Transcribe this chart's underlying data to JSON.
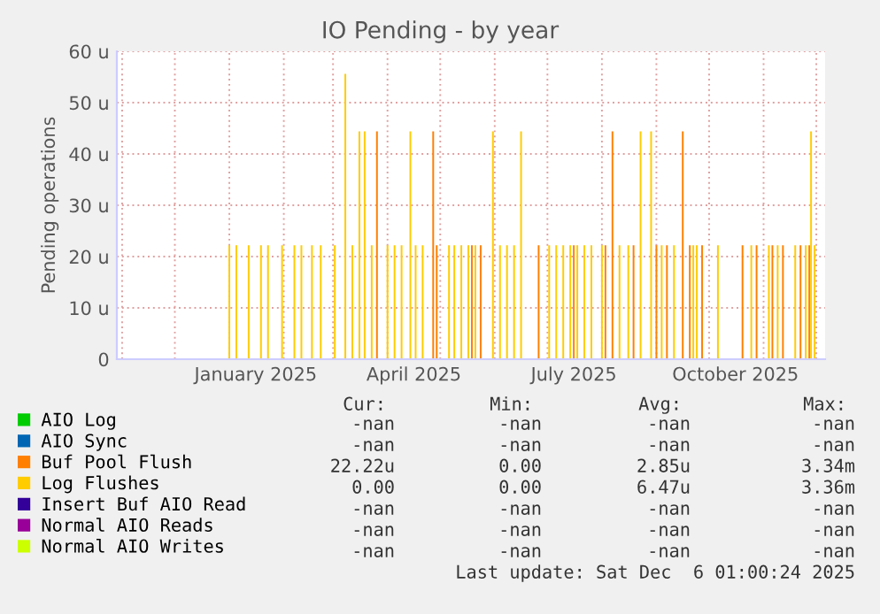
{
  "chart_data": {
    "type": "bar",
    "title": "IO Pending - by year",
    "ylabel": "Pending operations",
    "xlim": [
      "2024-10-29",
      "2025-12-06"
    ],
    "xticks": [
      {
        "value": "2024-11-01",
        "label": null
      },
      {
        "value": "2024-12-01",
        "label": null
      },
      {
        "value": "2025-01-01",
        "label": null
      },
      {
        "value": "2025-01-16",
        "label": "January 2025"
      },
      {
        "value": "2025-02-01",
        "label": null
      },
      {
        "value": "2025-03-01",
        "label": null
      },
      {
        "value": "2025-04-01",
        "label": null
      },
      {
        "value": "2025-04-16",
        "label": "April 2025"
      },
      {
        "value": "2025-05-01",
        "label": null
      },
      {
        "value": "2025-06-01",
        "label": null
      },
      {
        "value": "2025-07-01",
        "label": null
      },
      {
        "value": "2025-07-16",
        "label": "July 2025"
      },
      {
        "value": "2025-08-01",
        "label": null
      },
      {
        "value": "2025-09-01",
        "label": null
      },
      {
        "value": "2025-10-01",
        "label": null
      },
      {
        "value": "2025-10-16",
        "label": "October 2025"
      },
      {
        "value": "2025-11-01",
        "label": null
      },
      {
        "value": "2025-12-01",
        "label": null
      }
    ],
    "ylim": [
      0,
      60
    ],
    "yticks": [
      0,
      {
        "value": 10,
        "label": "10 u"
      },
      {
        "value": 20,
        "label": "20 u"
      },
      {
        "value": 30,
        "label": "30 u"
      },
      {
        "value": 40,
        "label": "40 u"
      },
      {
        "value": 50,
        "label": "50 u"
      },
      {
        "value": 60,
        "label": "60 u"
      }
    ],
    "grid": true,
    "legend": "bottom",
    "series": [
      {
        "name": "AIO Log",
        "color": "#00cc00"
      },
      {
        "name": "AIO Sync",
        "color": "#0066b3"
      },
      {
        "name": "Buf Pool Flush",
        "color": "#ff8000",
        "x": [
          "2025-03-26",
          "2025-04-27",
          "2025-04-29",
          "2025-05-19",
          "2025-05-24",
          "2025-06-26",
          "2025-07-16",
          "2025-08-03",
          "2025-08-07",
          "2025-08-19",
          "2025-09-01",
          "2025-09-07",
          "2025-09-16",
          "2025-09-20",
          "2025-09-27",
          "2025-10-20",
          "2025-10-28",
          "2025-11-06",
          "2025-11-12",
          "2025-11-22",
          "2025-11-27"
        ],
        "values": [
          44.4,
          44.4,
          22.2,
          22.2,
          22.2,
          22.2,
          22.2,
          22.2,
          44.4,
          22.2,
          22.2,
          22.2,
          44.4,
          22.2,
          22.2,
          22.2,
          22.2,
          22.2,
          22.2,
          22.2,
          22.2
        ]
      },
      {
        "name": "Log Flushes",
        "color": "#ffcc00",
        "x": [
          "2025-01-01",
          "2025-01-05",
          "2025-01-12",
          "2025-01-19",
          "2025-01-23",
          "2025-01-31",
          "2025-02-07",
          "2025-02-11",
          "2025-02-17",
          "2025-02-22",
          "2025-03-02",
          "2025-03-08",
          "2025-03-12",
          "2025-03-16",
          "2025-03-19",
          "2025-03-23",
          "2025-04-01",
          "2025-04-05",
          "2025-04-09",
          "2025-04-14",
          "2025-04-17",
          "2025-04-21",
          "2025-05-06",
          "2025-05-09",
          "2025-05-13",
          "2025-05-17",
          "2025-05-21",
          "2025-05-31",
          "2025-06-04",
          "2025-06-08",
          "2025-06-12",
          "2025-06-16",
          "2025-07-02",
          "2025-07-06",
          "2025-07-10",
          "2025-07-14",
          "2025-07-18",
          "2025-07-22",
          "2025-07-26",
          "2025-08-01",
          "2025-08-11",
          "2025-08-16",
          "2025-08-23",
          "2025-08-29",
          "2025-09-04",
          "2025-09-11",
          "2025-09-22",
          "2025-09-24",
          "2025-10-06",
          "2025-10-25",
          "2025-11-04",
          "2025-11-09",
          "2025-11-19",
          "2025-11-25",
          "2025-11-28",
          "2025-11-30"
        ],
        "values": [
          22.2,
          22.2,
          22.2,
          22.2,
          22.2,
          22.2,
          22.2,
          22.2,
          22.2,
          22.2,
          22.2,
          55.6,
          22.2,
          44.4,
          44.4,
          22.2,
          22.2,
          22.2,
          22.2,
          44.4,
          22.2,
          22.2,
          22.2,
          22.2,
          22.2,
          22.2,
          22.2,
          44.4,
          22.2,
          22.2,
          22.2,
          44.4,
          22.2,
          22.2,
          22.2,
          22.2,
          22.2,
          22.2,
          22.2,
          22.2,
          22.2,
          22.2,
          44.4,
          44.4,
          22.2,
          22.2,
          22.2,
          22.2,
          22.2,
          22.2,
          22.2,
          22.2,
          22.2,
          22.2,
          44.4,
          22.2
        ]
      },
      {
        "name": "Insert Buf AIO Read",
        "color": "#330099"
      },
      {
        "name": "Normal AIO Reads",
        "color": "#990099"
      },
      {
        "name": "Normal AIO Writes",
        "color": "#ccff00"
      }
    ],
    "annotations": [
      "Cur:",
      "Min:",
      "Avg:",
      "Max:",
      "-nan",
      "-nan",
      "-nan",
      "-nan",
      "-nan",
      "-nan",
      "-nan",
      "-nan",
      "22.22u",
      "0.00",
      "2.85u",
      "3.34m",
      "0.00",
      "0.00",
      "6.47u",
      "3.36m",
      "-nan",
      "-nan",
      "-nan",
      "-nan",
      "-nan",
      "-nan",
      "-nan",
      "-nan",
      "-nan",
      "-nan",
      "-nan",
      "-nan",
      "Last update: Sat Dec  6 01:00:24 2025"
    ]
  }
}
